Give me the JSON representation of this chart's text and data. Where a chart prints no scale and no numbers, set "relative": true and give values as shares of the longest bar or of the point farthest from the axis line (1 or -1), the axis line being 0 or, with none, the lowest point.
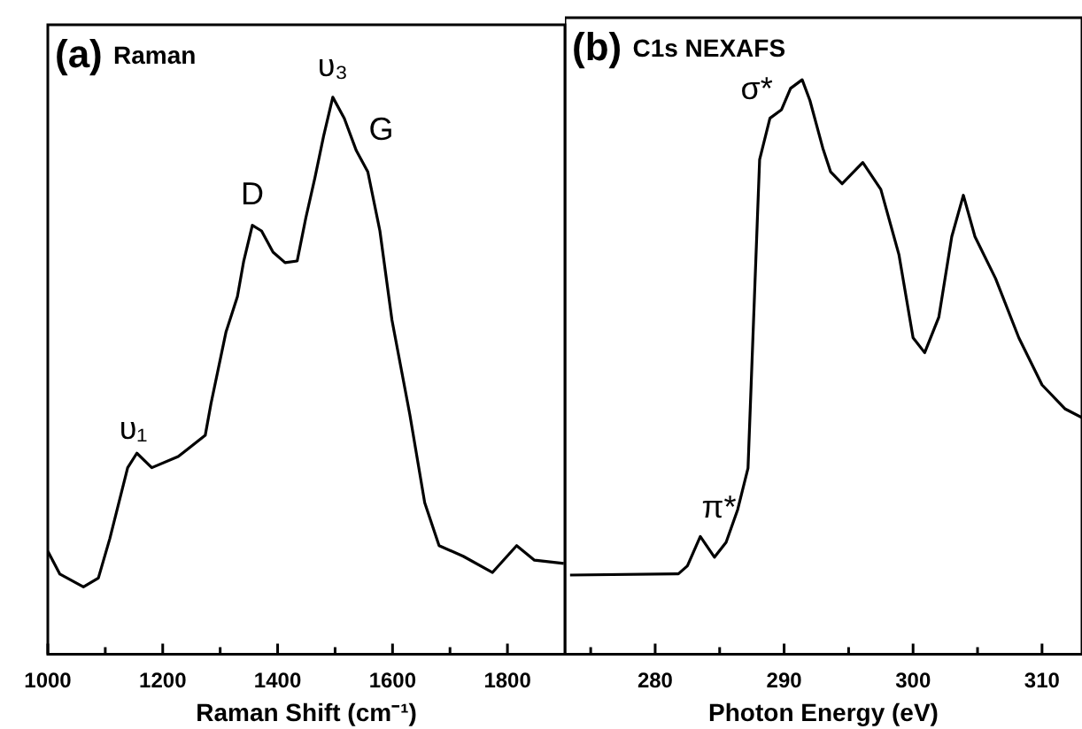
{
  "chart_data": [
    {
      "type": "line",
      "title": "(a) Raman",
      "xlabel": "Raman Shift (cm⁻¹)",
      "relative": true,
      "xlim": [
        1000,
        1900
      ],
      "xticks": [
        1000,
        {
          "value": 1100,
          "label": null
        },
        1200,
        {
          "value": 1300,
          "label": null
        },
        1400,
        {
          "value": 1500,
          "label": null
        },
        1600,
        {
          "value": 1700,
          "label": null
        },
        1800
      ],
      "x": [
        1000,
        1021,
        1062,
        1088,
        1108,
        1139,
        1155,
        1181,
        1227,
        1274,
        1284,
        1310,
        1330,
        1341,
        1356,
        1372,
        1392,
        1413,
        1434,
        1449,
        1465,
        1480,
        1496,
        1516,
        1537,
        1557,
        1578,
        1599,
        1630,
        1656,
        1681,
        1723,
        1774,
        1816,
        1847,
        1898
      ],
      "series": [
        {
          "color": "#000000",
          "values": [
            0.185,
            0.144,
            0.121,
            0.137,
            0.208,
            0.335,
            0.361,
            0.335,
            0.355,
            0.393,
            0.45,
            0.578,
            0.642,
            0.706,
            0.77,
            0.76,
            0.722,
            0.703,
            0.706,
            0.783,
            0.856,
            0.93,
            1.0,
            0.962,
            0.904,
            0.866,
            0.76,
            0.6,
            0.431,
            0.272,
            0.195,
            0.176,
            0.147,
            0.195,
            0.169,
            0.163
          ]
        }
      ],
      "annotations": [
        {
          "text": "υ₁",
          "x": 1155,
          "y": 0.361
        },
        {
          "text": "D",
          "x": 1356,
          "y": 0.77
        },
        {
          "text": "υ₃",
          "x": 1496,
          "y": 1.0
        },
        {
          "text": "G",
          "x": 1537,
          "y": 0.904
        }
      ]
    },
    {
      "type": "line",
      "title": "(b) C1s NEXAFS",
      "xlabel": "Photon Energy (eV)",
      "relative": true,
      "xlim": [
        273,
        313.1
      ],
      "xticks": [
        {
          "value": 275,
          "label": null
        },
        280,
        {
          "value": 285,
          "label": null
        },
        290,
        {
          "value": 295,
          "label": null
        },
        300,
        {
          "value": 305,
          "label": null
        },
        310
      ],
      "x": [
        273.4,
        281.8,
        282.5,
        283.5,
        284.6,
        285.5,
        286.4,
        287.2,
        287.7,
        288.1,
        288.9,
        289.8,
        290.5,
        291.4,
        292.0,
        293.0,
        293.6,
        294.5,
        296.1,
        297.5,
        298.9,
        300,
        300.9,
        302.0,
        303.0,
        303.9,
        304.8,
        306.4,
        308.2,
        310,
        311.8,
        313.1
      ],
      "series": [
        {
          "color": "#000000",
          "values": [
            0.138,
            0.14,
            0.154,
            0.205,
            0.169,
            0.195,
            0.252,
            0.324,
            0.623,
            0.861,
            0.933,
            0.948,
            0.985,
            1.0,
            0.964,
            0.881,
            0.84,
            0.819,
            0.856,
            0.809,
            0.696,
            0.551,
            0.525,
            0.587,
            0.727,
            0.799,
            0.727,
            0.654,
            0.551,
            0.469,
            0.427,
            0.412
          ]
        }
      ],
      "annotations": [
        {
          "text": "σ*",
          "x": 289.8,
          "y": 0.948
        },
        {
          "text": "π*",
          "x": 285.5,
          "y": 0.195
        }
      ]
    }
  ]
}
